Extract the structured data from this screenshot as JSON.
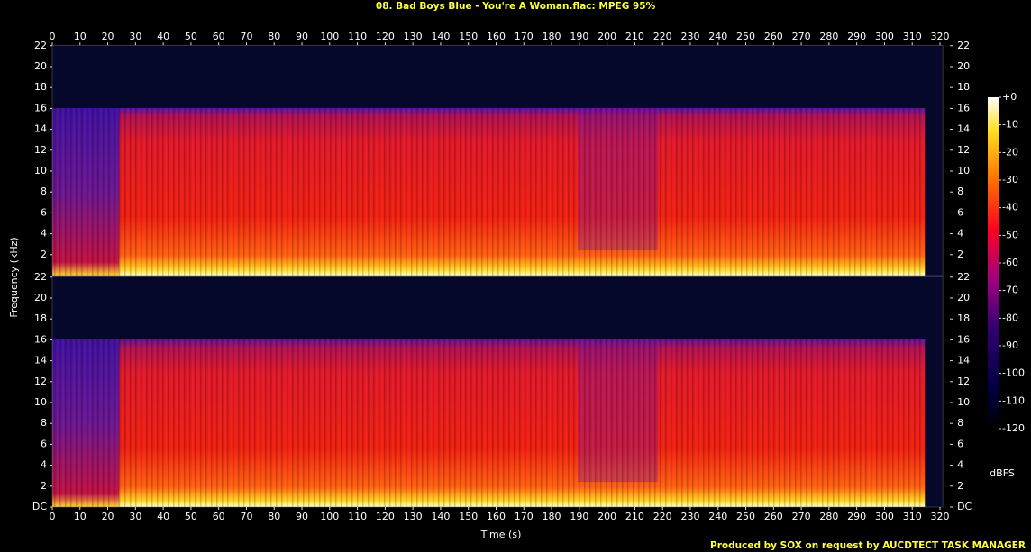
{
  "chart_data": [
    {
      "type": "spectrogram",
      "title": "08. Bad Boys Blue - You're A Woman.flac: MPEG 95%",
      "ylabel": "Frequency (kHz)",
      "xlim": [
        0,
        321
      ],
      "xticks": [
        0,
        10,
        20,
        30,
        40,
        50,
        60,
        70,
        80,
        90,
        100,
        110,
        120,
        130,
        140,
        150,
        160,
        170,
        180,
        190,
        200,
        210,
        220,
        230,
        240,
        250,
        260,
        270,
        280,
        290,
        300,
        310,
        320
      ],
      "ylim": [
        0,
        22.05
      ],
      "yticks": [
        2,
        4,
        6,
        8,
        10,
        12,
        14,
        16,
        18,
        20,
        22
      ],
      "colorbar_label": "dBFS",
      "clim": [
        -120,
        0
      ],
      "cticks": [
        {
          "value": 0,
          "label": "+0"
        },
        -10,
        -20,
        -30,
        -40,
        -50,
        -60,
        -70,
        -80,
        -90,
        -100,
        -110,
        -120
      ]
    },
    {
      "type": "spectrogram",
      "xlabel": "Time (s)",
      "xlim": [
        0,
        321
      ],
      "xticks": [
        0,
        10,
        20,
        30,
        40,
        50,
        60,
        70,
        80,
        90,
        100,
        110,
        120,
        130,
        140,
        150,
        160,
        170,
        180,
        190,
        200,
        210,
        220,
        230,
        240,
        250,
        260,
        270,
        280,
        290,
        300,
        310,
        320
      ],
      "ylim": [
        0,
        22.05
      ],
      "yticks": [
        {
          "value": 0,
          "label": "DC"
        },
        2,
        4,
        6,
        8,
        10,
        12,
        14,
        16,
        18,
        20,
        22
      ],
      "footer": "Produced by SOX on request by AUCDTECT TASK MANAGER"
    }
  ]
}
